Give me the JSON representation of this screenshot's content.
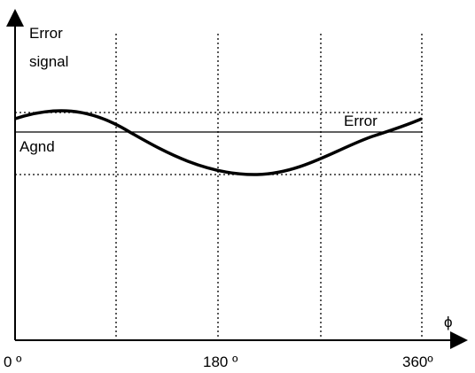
{
  "diagram": {
    "y_axis_label_line1": "Error",
    "y_axis_label_line2": "signal",
    "x_axis_label": "ϕ",
    "ref_line_label": "Agnd",
    "curve_label": "Error",
    "tick_0": "0 º",
    "tick_180": "180  º",
    "tick_360": "360º"
  },
  "chart_data": {
    "type": "line",
    "x_unit": "degrees",
    "x_range": [
      0,
      360
    ],
    "series": [
      {
        "name": "Error",
        "x": [
          0,
          30,
          60,
          90,
          120,
          150,
          180,
          210,
          240,
          270,
          300,
          330,
          360
        ],
        "y": [
          0.45,
          0.92,
          0.92,
          0.45,
          -0.18,
          -0.64,
          -0.92,
          -0.92,
          -0.45,
          0.18,
          0.64,
          0.92,
          0.45
        ],
        "description_values": "normalized amplitude; Agnd reference at 0"
      }
    ],
    "reference_lines": [
      "Agnd"
    ],
    "gridlines_vertical_deg": [
      90,
      180,
      270,
      360
    ],
    "gridlines_horizontal": [
      "curve max",
      "curve min"
    ]
  }
}
